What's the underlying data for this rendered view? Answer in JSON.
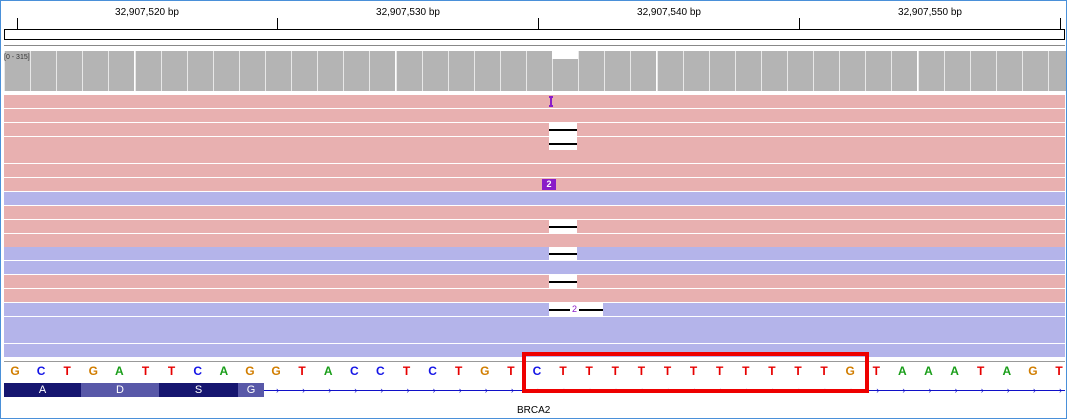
{
  "ruler": {
    "labels": [
      "32,907,520 bp",
      "32,907,530 bp",
      "32,907,540 bp",
      "32,907,550 bp"
    ]
  },
  "coverage": {
    "range_label": "[0 - 315]"
  },
  "reads": {
    "rows": [
      {
        "strand": "reverse",
        "mark": "insertion"
      },
      {
        "strand": "reverse",
        "mark": "none"
      },
      {
        "strand": "reverse",
        "mark": "deletion"
      },
      {
        "strand": "reverse",
        "mark": "deletion"
      },
      {
        "strand": "reverse",
        "mark": "none"
      },
      {
        "strand": "reverse",
        "mark": "none"
      },
      {
        "strand": "reverse",
        "mark": "insertion-2"
      },
      {
        "strand": "forward",
        "mark": "none"
      },
      {
        "strand": "reverse",
        "mark": "none"
      },
      {
        "strand": "reverse",
        "mark": "deletion"
      },
      {
        "strand": "reverse",
        "mark": "none"
      },
      {
        "strand": "forward",
        "mark": "deletion"
      },
      {
        "strand": "forward",
        "mark": "none"
      },
      {
        "strand": "reverse",
        "mark": "deletion"
      },
      {
        "strand": "reverse",
        "mark": "none"
      },
      {
        "strand": "forward",
        "mark": "deletion-2"
      },
      {
        "strand": "forward",
        "mark": "none"
      },
      {
        "strand": "forward",
        "mark": "none"
      },
      {
        "strand": "forward",
        "mark": "none"
      }
    ],
    "insertion_label": "2",
    "deletion_label": "2"
  },
  "sequence": {
    "bases": [
      "G",
      "C",
      "T",
      "G",
      "A",
      "T",
      "T",
      "C",
      "A",
      "G",
      "G",
      "T",
      "A",
      "C",
      "C",
      "T",
      "C",
      "T",
      "G",
      "T",
      "C",
      "T",
      "T",
      "T",
      "T",
      "T",
      "T",
      "T",
      "T",
      "T",
      "T",
      "T",
      "G",
      "T",
      "A",
      "A",
      "A",
      "T",
      "A",
      "G",
      "T"
    ]
  },
  "gene": {
    "amino_acids": [
      "A",
      "D",
      "S",
      "G"
    ],
    "name": "BRCA2"
  },
  "colors": {
    "reverse_read": "#e8b0b0",
    "forward_read": "#b4b4ea",
    "highlight": "#ee0000",
    "A": "#1a9e1a",
    "C": "#1515e6",
    "G": "#d17d00",
    "T": "#e60000"
  }
}
